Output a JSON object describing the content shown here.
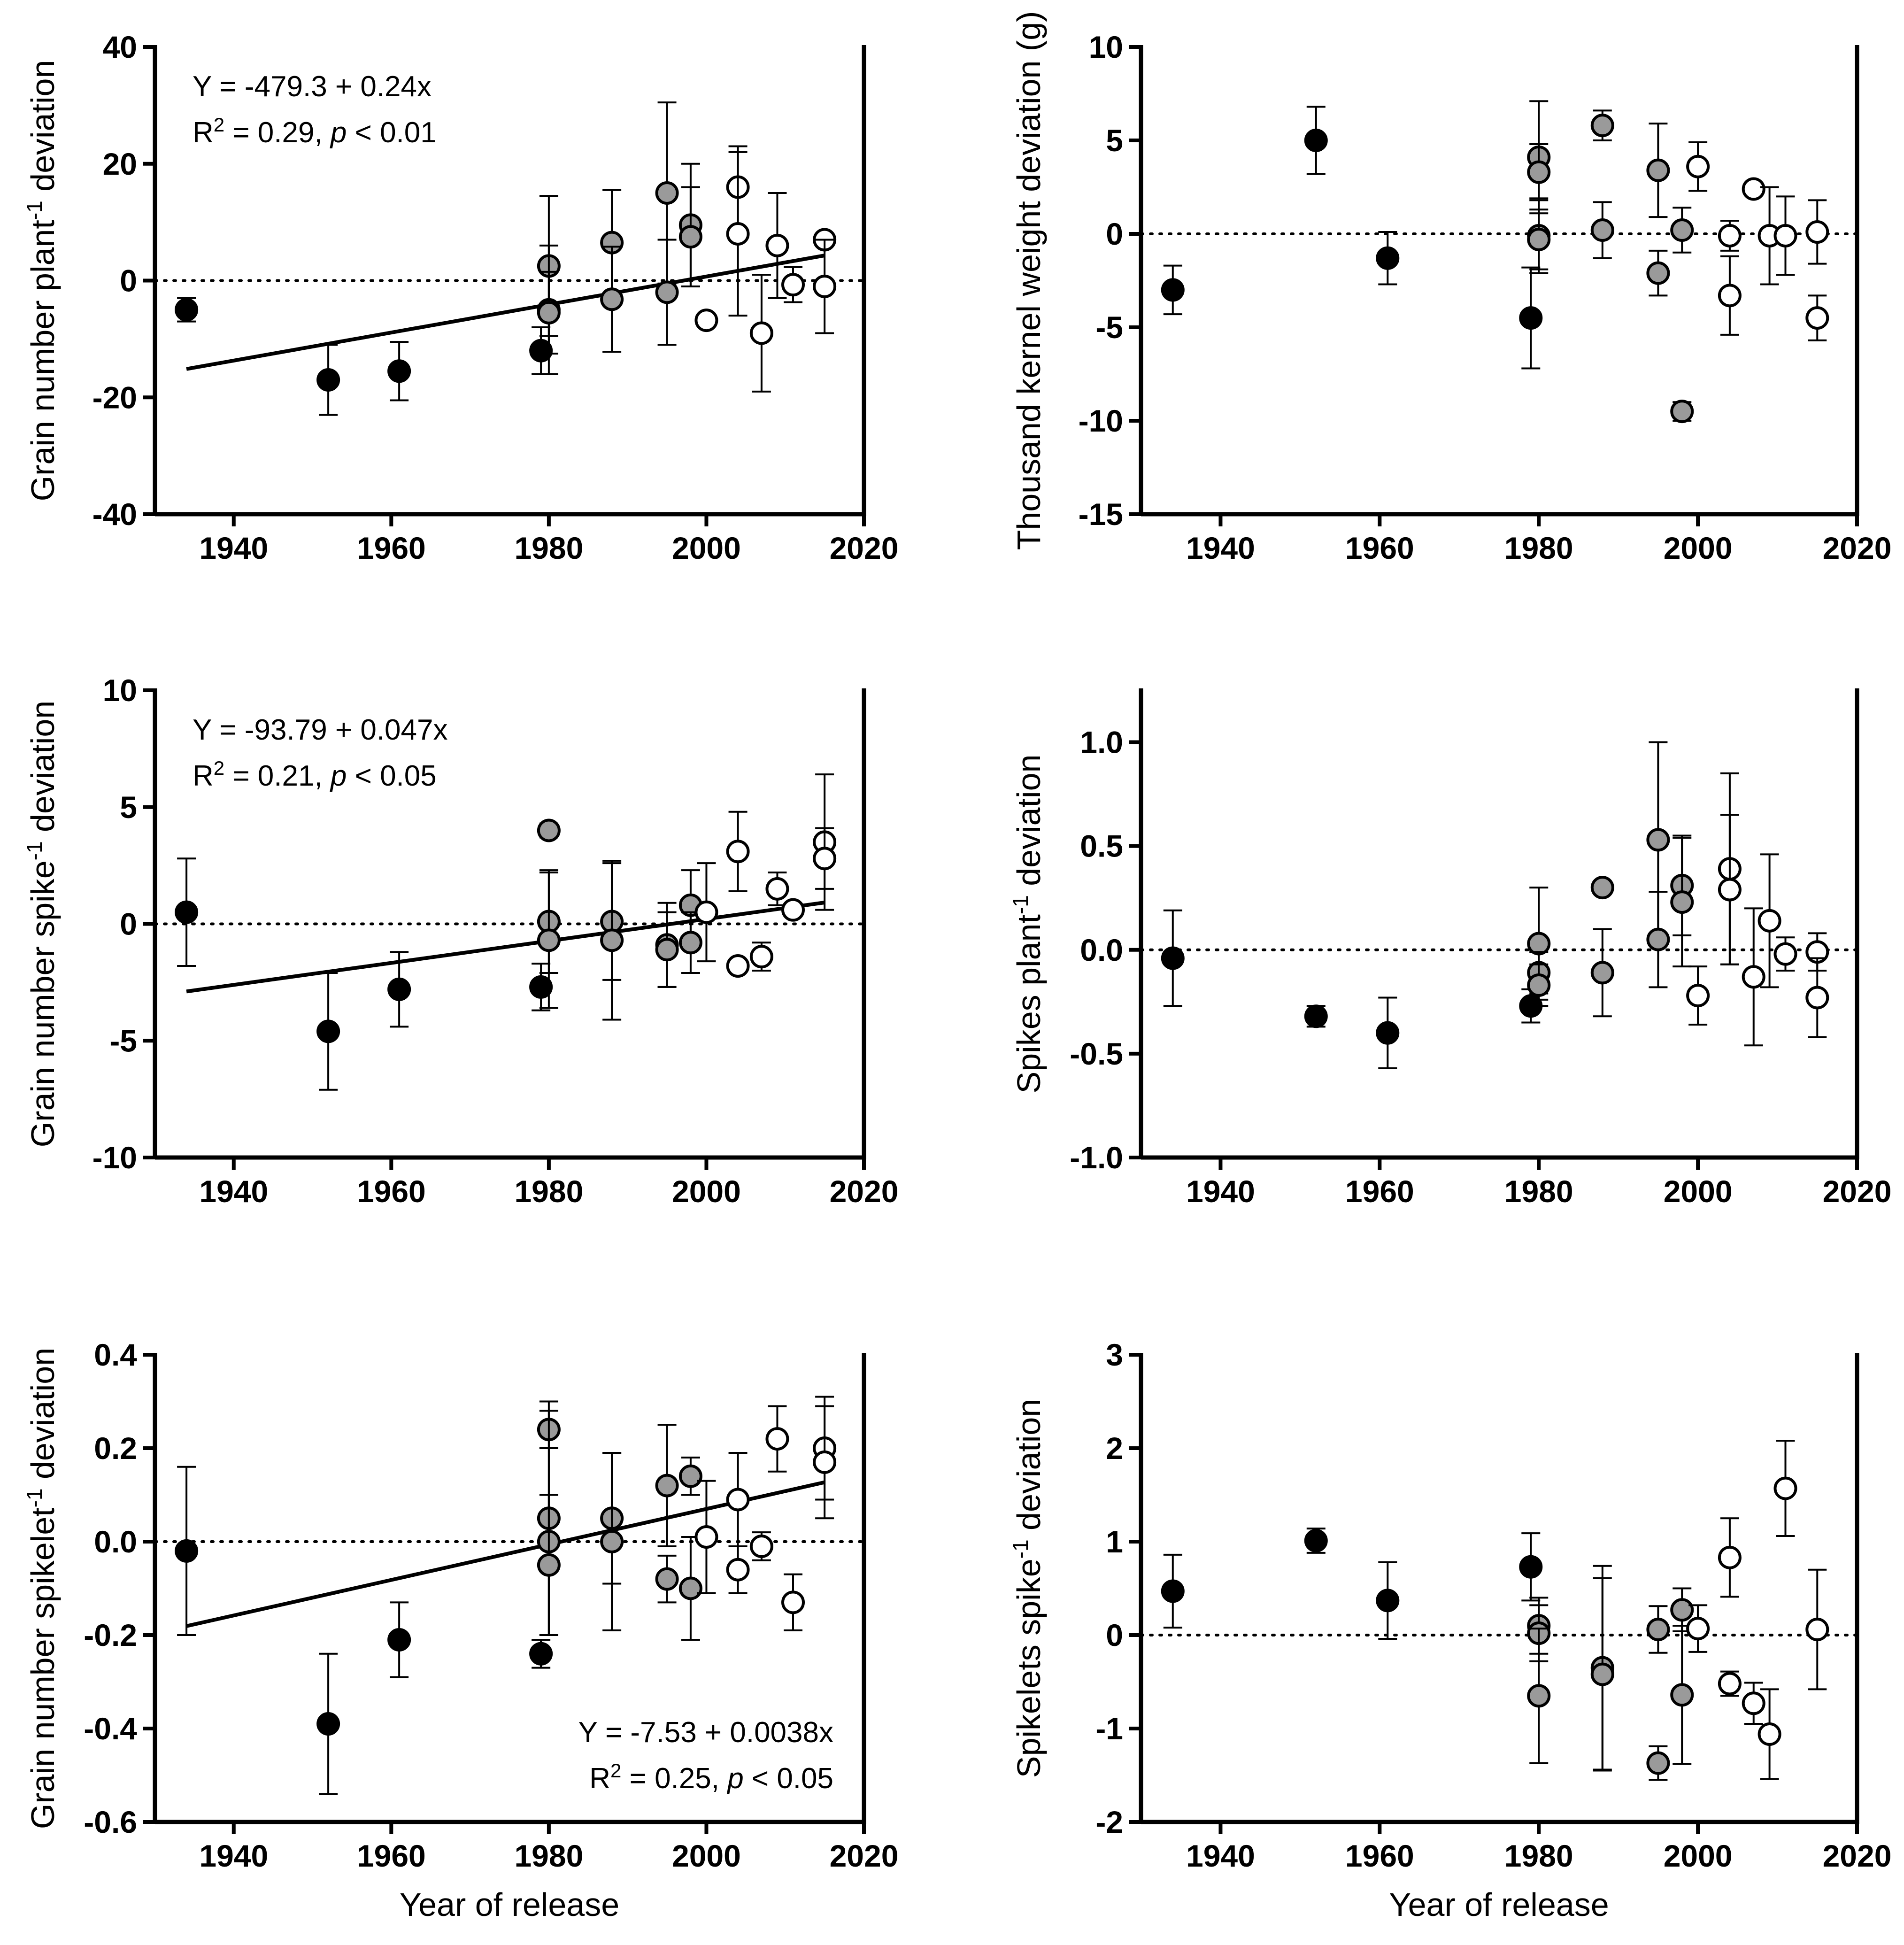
{
  "colors": {
    "early": "#000000",
    "middle": "#9a9a9a",
    "modern": "#ffffff",
    "stroke": "#000000"
  },
  "chart_data": [
    {
      "id": "grain-number-plant",
      "type": "scatter",
      "ylabel_main": "Grain number plant",
      "ylabel_sup": "-1",
      "ylabel_tail": " deviation",
      "xlabel": "",
      "xlim": [
        1930,
        2020
      ],
      "ylim": [
        -40,
        40
      ],
      "xticks": [
        1940,
        1960,
        1980,
        2000,
        2020
      ],
      "yticks": [
        -40,
        -20,
        0,
        20,
        40
      ],
      "ytick_labels": [
        "-40",
        "-20",
        "0",
        "20",
        "40"
      ],
      "equation": "Y = -479.3 + 0.24x",
      "stats_r": "R",
      "stats_sup": "2",
      "stats_mid": " = 0.29, ",
      "stats_p": "p",
      "stats_tail": " < 0.01",
      "equation_position": "top-left",
      "regression": {
        "x": [
          1934,
          2015
        ]
      },
      "points": [
        {
          "x": 1934,
          "y": -5,
          "err": 2,
          "group": "early"
        },
        {
          "x": 1952,
          "y": -17,
          "err": 6,
          "group": "early"
        },
        {
          "x": 1961,
          "y": -15.5,
          "err": 5,
          "group": "early"
        },
        {
          "x": 1979,
          "y": -12,
          "err": 4,
          "group": "early"
        },
        {
          "x": 1980,
          "y": 2.5,
          "err": 12,
          "group": "middle"
        },
        {
          "x": 1980,
          "y": -5,
          "err": 11,
          "group": "middle"
        },
        {
          "x": 1980,
          "y": -5.5,
          "err": 7,
          "group": "middle"
        },
        {
          "x": 1988,
          "y": 6.5,
          "err": 9,
          "group": "middle"
        },
        {
          "x": 1988,
          "y": -3.2,
          "err": 9,
          "group": "middle"
        },
        {
          "x": 1995,
          "y": 15,
          "err": 15.5,
          "group": "middle"
        },
        {
          "x": 1995,
          "y": -2,
          "err": 9,
          "group": "middle"
        },
        {
          "x": 1998,
          "y": 9.5,
          "err": 10.5,
          "group": "middle"
        },
        {
          "x": 1998,
          "y": 7.5,
          "err": 8.5,
          "group": "middle"
        },
        {
          "x": 2000,
          "y": -6.8,
          "err": 0,
          "group": "modern"
        },
        {
          "x": 2004,
          "y": 16,
          "err": 7,
          "group": "modern"
        },
        {
          "x": 2004,
          "y": 8,
          "err": 14,
          "group": "modern"
        },
        {
          "x": 2007,
          "y": -9,
          "err": 10,
          "group": "modern"
        },
        {
          "x": 2009,
          "y": 6,
          "err": 9,
          "group": "modern"
        },
        {
          "x": 2011,
          "y": -0.7,
          "err": 3,
          "group": "modern"
        },
        {
          "x": 2015,
          "y": 7,
          "err": 0,
          "group": "modern"
        },
        {
          "x": 2015,
          "y": -1,
          "err": 8,
          "group": "modern"
        }
      ]
    },
    {
      "id": "thousand-kernel-weight",
      "type": "scatter",
      "ylabel_main": "Thousand kernel weight deviation (g)",
      "ylabel_sup": "",
      "ylabel_tail": "",
      "xlabel": "",
      "xlim": [
        1930,
        2020
      ],
      "ylim": [
        -15,
        10
      ],
      "xticks": [
        1940,
        1960,
        1980,
        2000,
        2020
      ],
      "yticks": [
        -15,
        -10,
        -5,
        0,
        5,
        10
      ],
      "ytick_labels": [
        "-15",
        "-10",
        "-5",
        "0",
        "5",
        "10"
      ],
      "equation": "",
      "regression": null,
      "points": [
        {
          "x": 1934,
          "y": -3,
          "err": 1.3,
          "group": "early"
        },
        {
          "x": 1952,
          "y": 5,
          "err": 1.8,
          "group": "early"
        },
        {
          "x": 1961,
          "y": -1.3,
          "err": 1.4,
          "group": "early"
        },
        {
          "x": 1979,
          "y": -4.5,
          "err": 2.7,
          "group": "early"
        },
        {
          "x": 1980,
          "y": 4.1,
          "err": 3,
          "group": "middle"
        },
        {
          "x": 1980,
          "y": 3.3,
          "err": 1.5,
          "group": "middle"
        },
        {
          "x": 1980,
          "y": -0.1,
          "err": 2,
          "group": "middle"
        },
        {
          "x": 1980,
          "y": -0.3,
          "err": 1.6,
          "group": "middle"
        },
        {
          "x": 1988,
          "y": 5.8,
          "err": 0.8,
          "group": "middle"
        },
        {
          "x": 1988,
          "y": 0.2,
          "err": 1.5,
          "group": "middle"
        },
        {
          "x": 1995,
          "y": 3.4,
          "err": 2.5,
          "group": "middle"
        },
        {
          "x": 1995,
          "y": -2.1,
          "err": 1.2,
          "group": "middle"
        },
        {
          "x": 1998,
          "y": 0.2,
          "err": 1.2,
          "group": "middle"
        },
        {
          "x": 1998,
          "y": -9.5,
          "err": 0.5,
          "group": "middle"
        },
        {
          "x": 2000,
          "y": 3.6,
          "err": 1.3,
          "group": "modern"
        },
        {
          "x": 2004,
          "y": -0.1,
          "err": 0.8,
          "group": "modern"
        },
        {
          "x": 2004,
          "y": -3.3,
          "err": 2.1,
          "group": "modern"
        },
        {
          "x": 2007,
          "y": 2.4,
          "err": 0,
          "group": "modern"
        },
        {
          "x": 2009,
          "y": -0.1,
          "err": 2.6,
          "group": "modern"
        },
        {
          "x": 2011,
          "y": -0.1,
          "err": 2.1,
          "group": "modern"
        },
        {
          "x": 2015,
          "y": 0.1,
          "err": 1.7,
          "group": "modern"
        },
        {
          "x": 2015,
          "y": -4.5,
          "err": 1.2,
          "group": "modern"
        }
      ]
    },
    {
      "id": "grain-number-spike",
      "type": "scatter",
      "ylabel_main": "Grain number spike",
      "ylabel_sup": "-1",
      "ylabel_tail": " deviation",
      "xlabel": "",
      "xlim": [
        1930,
        2020
      ],
      "ylim": [
        -10,
        10
      ],
      "xticks": [
        1940,
        1960,
        1980,
        2000,
        2020
      ],
      "yticks": [
        -10,
        -5,
        0,
        5,
        10
      ],
      "ytick_labels": [
        "-10",
        "-5",
        "0",
        "5",
        "10"
      ],
      "equation": "Y = -93.79 + 0.047x",
      "stats_r": "R",
      "stats_sup": "2",
      "stats_mid": " = 0.21, ",
      "stats_p": "p",
      "stats_tail": " < 0.05",
      "equation_position": "top-left",
      "regression": {
        "x": [
          1934,
          2015
        ]
      },
      "points": [
        {
          "x": 1934,
          "y": 0.5,
          "err": 2.3,
          "group": "early"
        },
        {
          "x": 1952,
          "y": -4.6,
          "err": 2.5,
          "group": "early"
        },
        {
          "x": 1961,
          "y": -2.8,
          "err": 1.6,
          "group": "early"
        },
        {
          "x": 1979,
          "y": -2.7,
          "err": 1.0,
          "group": "early"
        },
        {
          "x": 1980,
          "y": 4.0,
          "err": 0.3,
          "group": "middle"
        },
        {
          "x": 1980,
          "y": 0.1,
          "err": 2.2,
          "group": "middle"
        },
        {
          "x": 1980,
          "y": -0.7,
          "err": 2.9,
          "group": "middle"
        },
        {
          "x": 1988,
          "y": 0.1,
          "err": 2.5,
          "group": "middle"
        },
        {
          "x": 1988,
          "y": -0.7,
          "err": 3.4,
          "group": "middle"
        },
        {
          "x": 1995,
          "y": -0.9,
          "err": 1.8,
          "group": "middle"
        },
        {
          "x": 1995,
          "y": -1.1,
          "err": 1.6,
          "group": "middle"
        },
        {
          "x": 1998,
          "y": 0.8,
          "err": 1.5,
          "group": "middle"
        },
        {
          "x": 1998,
          "y": -0.8,
          "err": 1.3,
          "group": "middle"
        },
        {
          "x": 2000,
          "y": 0.5,
          "err": 2.1,
          "group": "modern"
        },
        {
          "x": 2004,
          "y": 3.1,
          "err": 1.7,
          "group": "modern"
        },
        {
          "x": 2004,
          "y": -1.8,
          "err": 0,
          "group": "modern"
        },
        {
          "x": 2007,
          "y": -1.4,
          "err": 0.6,
          "group": "modern"
        },
        {
          "x": 2009,
          "y": 1.5,
          "err": 0.7,
          "group": "modern"
        },
        {
          "x": 2011,
          "y": 0.6,
          "err": 0,
          "group": "modern"
        },
        {
          "x": 2015,
          "y": 3.5,
          "err": 2.9,
          "group": "modern"
        },
        {
          "x": 2015,
          "y": 2.8,
          "err": 1.3,
          "group": "modern"
        }
      ]
    },
    {
      "id": "spikes-plant",
      "type": "scatter",
      "ylabel_main": "Spikes plant",
      "ylabel_sup": "-1",
      "ylabel_tail": " deviation",
      "xlabel": "",
      "xlim": [
        1930,
        2020
      ],
      "ylim": [
        -1.0,
        1.25
      ],
      "xticks": [
        1940,
        1960,
        1980,
        2000,
        2020
      ],
      "yticks": [
        -1.0,
        -0.5,
        0.0,
        0.5,
        1.0
      ],
      "ytick_labels": [
        "-1.0",
        "-0.5",
        "0.0",
        "0.5",
        "1.0"
      ],
      "equation": "",
      "regression": null,
      "points": [
        {
          "x": 1934,
          "y": -0.04,
          "err": 0.23,
          "group": "early"
        },
        {
          "x": 1952,
          "y": -0.32,
          "err": 0.05,
          "group": "early"
        },
        {
          "x": 1961,
          "y": -0.4,
          "err": 0.17,
          "group": "early"
        },
        {
          "x": 1979,
          "y": -0.27,
          "err": 0.08,
          "group": "early"
        },
        {
          "x": 1980,
          "y": 0.03,
          "err": 0.27,
          "group": "middle"
        },
        {
          "x": 1980,
          "y": -0.11,
          "err": 0.1,
          "group": "middle"
        },
        {
          "x": 1980,
          "y": -0.17,
          "err": 0.1,
          "group": "middle"
        },
        {
          "x": 1988,
          "y": 0.3,
          "err": 0,
          "group": "middle"
        },
        {
          "x": 1988,
          "y": -0.11,
          "err": 0.21,
          "group": "middle"
        },
        {
          "x": 1995,
          "y": 0.53,
          "err": 0.47,
          "group": "middle"
        },
        {
          "x": 1995,
          "y": 0.05,
          "err": 0.23,
          "group": "middle"
        },
        {
          "x": 1998,
          "y": 0.31,
          "err": 0.24,
          "group": "middle"
        },
        {
          "x": 1998,
          "y": 0.23,
          "err": 0.31,
          "group": "middle"
        },
        {
          "x": 2000,
          "y": -0.22,
          "err": 0.14,
          "group": "modern"
        },
        {
          "x": 2004,
          "y": 0.39,
          "err": 0.46,
          "group": "modern"
        },
        {
          "x": 2004,
          "y": 0.29,
          "err": 0.36,
          "group": "modern"
        },
        {
          "x": 2007,
          "y": -0.13,
          "err": 0.33,
          "group": "modern"
        },
        {
          "x": 2009,
          "y": 0.14,
          "err": 0.32,
          "group": "modern"
        },
        {
          "x": 2011,
          "y": -0.02,
          "err": 0.08,
          "group": "modern"
        },
        {
          "x": 2015,
          "y": -0.01,
          "err": 0.09,
          "group": "modern"
        },
        {
          "x": 2015,
          "y": -0.23,
          "err": 0.19,
          "group": "modern"
        }
      ]
    },
    {
      "id": "grain-number-spikelet",
      "type": "scatter",
      "ylabel_main": "Grain number spikelet",
      "ylabel_sup": "-1",
      "ylabel_tail": " deviation",
      "xlabel": "Year of release",
      "xlim": [
        1930,
        2020
      ],
      "ylim": [
        -0.6,
        0.4
      ],
      "xticks": [
        1940,
        1960,
        1980,
        2000,
        2020
      ],
      "yticks": [
        -0.6,
        -0.4,
        -0.2,
        0.0,
        0.2,
        0.4
      ],
      "ytick_labels": [
        "-0.6",
        "-0.4",
        "-0.2",
        "0.0",
        "0.2",
        "0.4"
      ],
      "equation": "Y = -7.53 + 0.0038x",
      "stats_r": "R",
      "stats_sup": "2",
      "stats_mid": " = 0.25, ",
      "stats_p": "p",
      "stats_tail": " < 0.05",
      "equation_position": "bottom-right",
      "regression": {
        "x": [
          1934,
          2015
        ]
      },
      "points": [
        {
          "x": 1934,
          "y": -0.02,
          "err": 0.18,
          "group": "early"
        },
        {
          "x": 1952,
          "y": -0.39,
          "err": 0.15,
          "group": "early"
        },
        {
          "x": 1961,
          "y": -0.21,
          "err": 0.08,
          "group": "early"
        },
        {
          "x": 1979,
          "y": -0.24,
          "err": 0.03,
          "group": "early"
        },
        {
          "x": 1980,
          "y": 0.24,
          "err": 0.04,
          "group": "middle"
        },
        {
          "x": 1980,
          "y": 0.05,
          "err": 0.25,
          "group": "middle"
        },
        {
          "x": 1980,
          "y": 0.0,
          "err": 0.2,
          "group": "middle"
        },
        {
          "x": 1980,
          "y": -0.05,
          "err": 0.15,
          "group": "middle"
        },
        {
          "x": 1988,
          "y": 0.05,
          "err": 0.14,
          "group": "middle"
        },
        {
          "x": 1988,
          "y": 0.0,
          "err": 0.19,
          "group": "middle"
        },
        {
          "x": 1995,
          "y": 0.12,
          "err": 0.13,
          "group": "middle"
        },
        {
          "x": 1995,
          "y": -0.08,
          "err": 0.05,
          "group": "middle"
        },
        {
          "x": 1998,
          "y": 0.14,
          "err": 0.04,
          "group": "middle"
        },
        {
          "x": 1998,
          "y": -0.1,
          "err": 0.11,
          "group": "middle"
        },
        {
          "x": 2000,
          "y": 0.01,
          "err": 0.12,
          "group": "modern"
        },
        {
          "x": 2004,
          "y": 0.09,
          "err": 0.1,
          "group": "modern"
        },
        {
          "x": 2004,
          "y": -0.06,
          "err": 0.05,
          "group": "modern"
        },
        {
          "x": 2007,
          "y": -0.01,
          "err": 0.03,
          "group": "modern"
        },
        {
          "x": 2009,
          "y": 0.22,
          "err": 0.07,
          "group": "modern"
        },
        {
          "x": 2011,
          "y": -0.13,
          "err": 0.06,
          "group": "modern"
        },
        {
          "x": 2015,
          "y": 0.2,
          "err": 0.11,
          "group": "modern"
        },
        {
          "x": 2015,
          "y": 0.17,
          "err": 0.12,
          "group": "modern"
        }
      ]
    },
    {
      "id": "spikelets-spike",
      "type": "scatter",
      "ylabel_main": "Spikelets spike",
      "ylabel_sup": "-1",
      "ylabel_tail": " deviation",
      "xlabel": "Year of release",
      "xlim": [
        1930,
        2020
      ],
      "ylim": [
        -2,
        3
      ],
      "xticks": [
        1940,
        1960,
        1980,
        2000,
        2020
      ],
      "yticks": [
        -2,
        -1,
        0,
        1,
        2,
        3
      ],
      "ytick_labels": [
        "-2",
        "-1",
        "0",
        "1",
        "2",
        "3"
      ],
      "equation": "",
      "regression": null,
      "points": [
        {
          "x": 1934,
          "y": 0.47,
          "err": 0.39,
          "group": "early"
        },
        {
          "x": 1952,
          "y": 1.01,
          "err": 0.13,
          "group": "early"
        },
        {
          "x": 1961,
          "y": 0.37,
          "err": 0.41,
          "group": "early"
        },
        {
          "x": 1979,
          "y": 0.73,
          "err": 0.36,
          "group": "early"
        },
        {
          "x": 1980,
          "y": 0.1,
          "err": 0.3,
          "group": "middle"
        },
        {
          "x": 1980,
          "y": 0.02,
          "err": 0.3,
          "group": "middle"
        },
        {
          "x": 1980,
          "y": -0.65,
          "err": 0.72,
          "group": "middle"
        },
        {
          "x": 1988,
          "y": -0.35,
          "err": 1.09,
          "group": "middle"
        },
        {
          "x": 1988,
          "y": -0.42,
          "err": 1.03,
          "group": "middle"
        },
        {
          "x": 1995,
          "y": 0.06,
          "err": 0.25,
          "group": "middle"
        },
        {
          "x": 1995,
          "y": -1.37,
          "err": 0.18,
          "group": "middle"
        },
        {
          "x": 1998,
          "y": 0.27,
          "err": 0.23,
          "group": "middle"
        },
        {
          "x": 1998,
          "y": -0.64,
          "err": 0.74,
          "group": "middle"
        },
        {
          "x": 2000,
          "y": 0.07,
          "err": 0.25,
          "group": "modern"
        },
        {
          "x": 2004,
          "y": 0.83,
          "err": 0.42,
          "group": "modern"
        },
        {
          "x": 2004,
          "y": -0.52,
          "err": 0.13,
          "group": "modern"
        },
        {
          "x": 2007,
          "y": -0.73,
          "err": 0.22,
          "group": "modern"
        },
        {
          "x": 2009,
          "y": -1.06,
          "err": 0.48,
          "group": "modern"
        },
        {
          "x": 2011,
          "y": 1.57,
          "err": 0.51,
          "group": "modern"
        },
        {
          "x": 2015,
          "y": 0.06,
          "err": 0.64,
          "group": "modern"
        }
      ]
    }
  ]
}
